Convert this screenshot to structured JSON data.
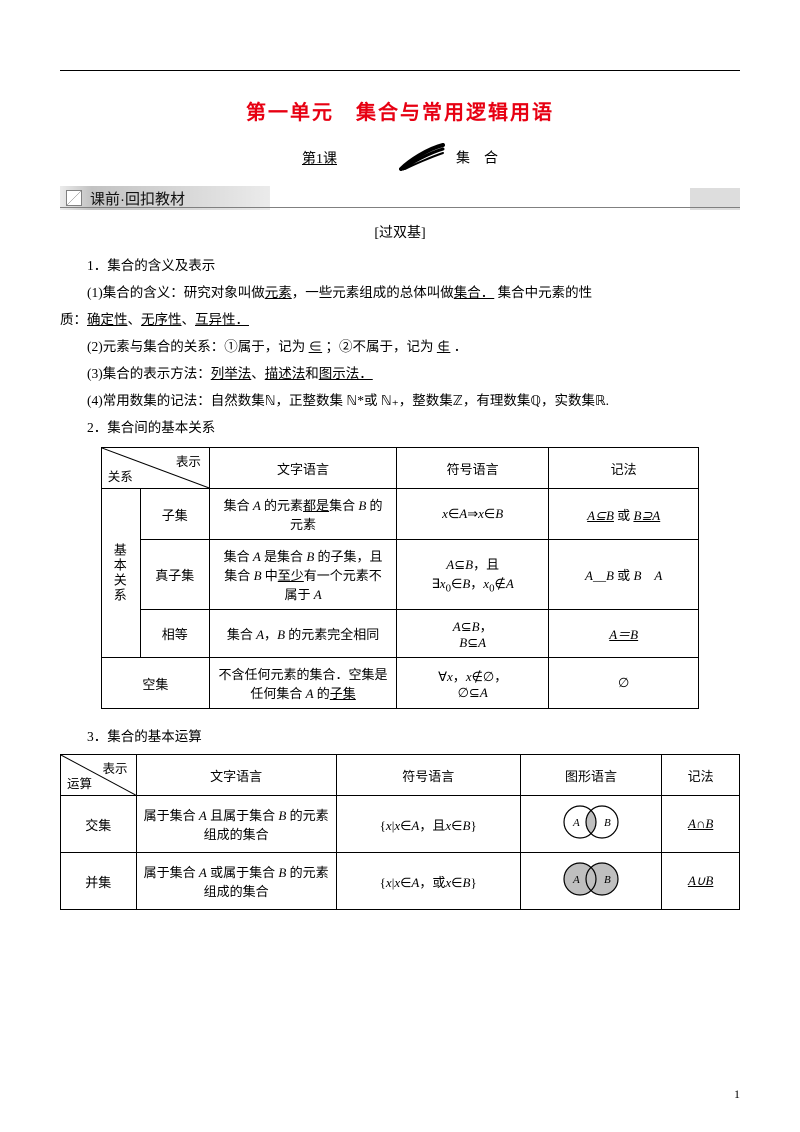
{
  "meta": {
    "page_number": "1"
  },
  "unit_title": "第一单元　集合与常用逻辑用语",
  "lesson": {
    "label": "第1课",
    "topic": "集　合"
  },
  "section_bar": "课前·回扣教材",
  "headers": {
    "double_basic": "[过双基]"
  },
  "p1": {
    "h": "1．集合的含义及表示",
    "a": "(1)集合的含义：研究对象叫做",
    "a_ul1": "元素",
    "a_mid": "，一些元素组成的总体叫做",
    "a_ul2": "集合．",
    "a_tail": " 集合中元素的性",
    "a_line2_pre": "质：",
    "q1": "确定性",
    "q_sep": "、",
    "q2": "无序性",
    "q3": "互异性．",
    "b": "(2)元素与集合的关系：①属于，记为 ",
    "b_sym1": "∈",
    "b_mid": " ；②不属于，记为 ",
    "b_sym2": "∉",
    "b_end": " ．",
    "c": "(3)集合的表示方法：",
    "c_ul1": "列举法",
    "c_sep": "、",
    "c_ul2": "描述法",
    "c_and": "和",
    "c_ul3": "图示法．",
    "d": "(4)常用数集的记法：自然数集ℕ，正整数集 ℕ*或 ℕ₊，整数集ℤ，有理数集ℚ，实数集ℝ."
  },
  "p2": {
    "h": "2．集合间的基本关系",
    "head_cols": {
      "c0_diag_top": "表示",
      "c0_diag_bot": "关系",
      "c1": "文字语言",
      "c2": "符号语言",
      "c3": "记法"
    },
    "group_label": "基本关系",
    "rows": [
      {
        "rel": "子集",
        "text_html": "集合 <span class='italic'>A</span> 的元素<span class='ul'>都是</span>集合 <span class='italic'>B</span> 的元素",
        "symbol": "<span class='italic'>x</span>∈<span class='italic'>A</span>⇒<span class='italic'>x</span>∈<span class='italic'>B</span>",
        "notation": "<span class='italic ul'>A⊆B</span> 或 <span class='italic ul'>B⊇A</span>"
      },
      {
        "rel": "真子集",
        "text_html": "集合 <span class='italic'>A</span> 是集合 <span class='italic'>B</span> 的子集，且集合 <span class='italic'>B</span> 中<span class='ul'>至少</span>有一个元素不属于 <span class='italic'>A</span>",
        "symbol": "<span class='italic'>A</span>⊆<span class='italic'>B</span>，且<br>∃<span class='italic'>x</span><sub>0</sub>∈<span class='italic'>B</span>，<span class='italic'>x</span><sub>0</sub>∉<span class='italic'>A</span>",
        "notation": "<span class='italic'>A</span>__<span class='italic'>B</span> 或 <span class='italic'>B</span>　<span class='italic'>A</span>"
      },
      {
        "rel": "相等",
        "text_html": "集合 <span class='italic'>A</span>，<span class='italic'>B</span> 的元素完全相同",
        "symbol": "<span class='italic'>A</span>⊆<span class='italic'>B</span>，<br><span class='italic'>B</span>⊆<span class='italic'>A</span>",
        "notation": "<span class='italic ul'>A＝B</span>"
      }
    ],
    "empty": {
      "rel": "空集",
      "text_html": "不含任何元素的集合．空集是任何集合 <span class='italic'>A</span> 的<span class='ul'>子集</span>",
      "symbol": "∀<span class='italic'>x</span>，<span class='italic'>x</span>∉∅，<br>∅⊆<span class='italic'>A</span>",
      "notation": "∅"
    }
  },
  "p3": {
    "h": "3．集合的基本运算",
    "head": {
      "diag_top": "表示",
      "diag_bot": "运算",
      "c1": "文字语言",
      "c2": "符号语言",
      "c3": "图形语言",
      "c4": "记法"
    },
    "rows": [
      {
        "op": "交集",
        "text": "属于集合 <span class='italic'>A</span> 且属于集合 <span class='italic'>B</span> 的元素组成的集合",
        "sym": "{<span class='italic'>x</span>|<span class='italic'>x</span>∈<span class='italic'>A</span>，且<span class='italic'>x</span>∈<span class='italic'>B</span>}",
        "venn": "intersection",
        "notation": "<span class='italic ul'>A∩B</span>"
      },
      {
        "op": "并集",
        "text": "属于集合 <span class='italic'>A</span> 或属于集合 <span class='italic'>B</span> 的元素组成的集合",
        "sym": "{<span class='italic'>x</span>|<span class='italic'>x</span>∈<span class='italic'>A</span>，或<span class='italic'>x</span>∈<span class='italic'>B</span>}",
        "venn": "union",
        "notation": "<span class='italic ul'>A∪B</span>"
      }
    ]
  },
  "colors": {
    "title": "#e70012",
    "text": "#000000",
    "bar": "#808080",
    "venn_fill": "#bfbfbf"
  }
}
